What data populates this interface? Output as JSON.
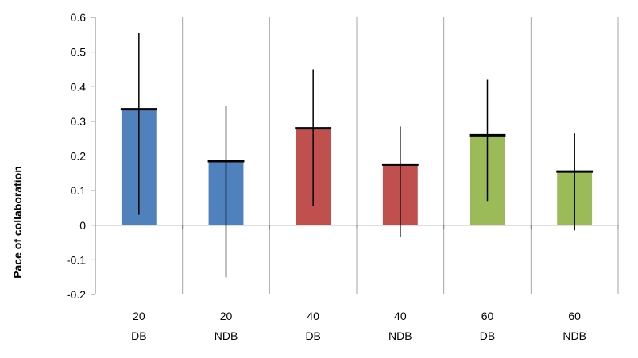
{
  "chart_data": {
    "type": "bar",
    "title": "",
    "xlabel": "",
    "ylabel": "Pace of collaboration",
    "ylim": [
      -0.2,
      0.6
    ],
    "yticks": [
      -0.2,
      -0.1,
      0,
      0.1,
      0.2,
      0.3,
      0.4,
      0.5,
      0.6
    ],
    "ytick_labels": [
      "-0.2",
      "-0.1",
      "0",
      "0.1",
      "0.2",
      "0.3",
      "0.4",
      "0.5",
      "0.6"
    ],
    "grid": "vertical category gridlines",
    "legend": "none",
    "categories": [
      [
        "20",
        "DB"
      ],
      [
        "20",
        "NDB"
      ],
      [
        "40",
        "DB"
      ],
      [
        "40",
        "NDB"
      ],
      [
        "60",
        "DB"
      ],
      [
        "60",
        "NDB"
      ]
    ],
    "values": [
      0.335,
      0.185,
      0.28,
      0.175,
      0.26,
      0.155
    ],
    "error_low": [
      0.03,
      -0.15,
      0.055,
      -0.035,
      0.07,
      -0.015
    ],
    "error_high": [
      0.555,
      0.345,
      0.45,
      0.285,
      0.42,
      0.265
    ],
    "colors": [
      "#4f81bd",
      "#4f81bd",
      "#c0504d",
      "#c0504d",
      "#9bbb59",
      "#9bbb59"
    ]
  }
}
